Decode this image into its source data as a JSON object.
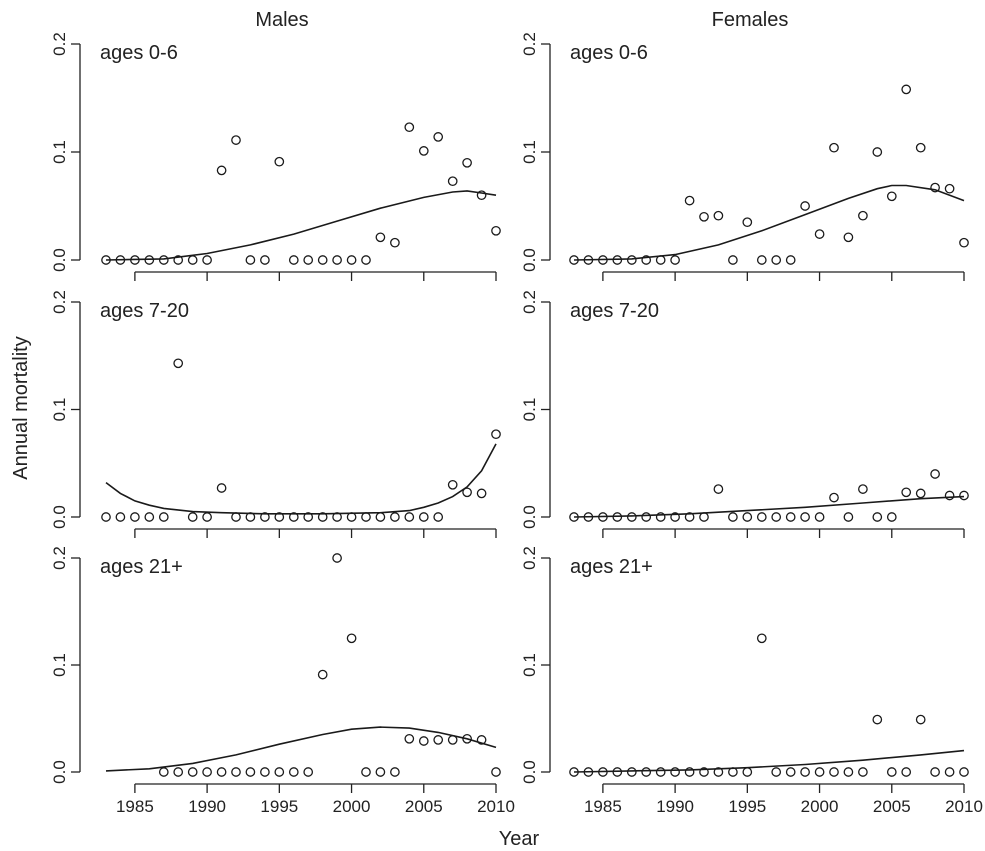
{
  "chart_data": {
    "type": "scatter",
    "xlabel": "Year",
    "ylabel": "Annual mortality",
    "ylim": [
      0,
      0.2
    ],
    "yticks": [
      0.0,
      0.1,
      0.2
    ],
    "ytick_labels": [
      "0.0",
      "0.1",
      "0.2"
    ],
    "xlim": [
      1983,
      2010
    ],
    "xticks": [
      1985,
      1990,
      1995,
      2000,
      2005,
      2010
    ],
    "xtick_labels": [
      "1985",
      "1990",
      "1995",
      "2000",
      "2005",
      "2010"
    ],
    "columns": [
      "Males",
      "Females"
    ],
    "grid": false,
    "panels": [
      {
        "column": "Males",
        "label": "ages 0-6",
        "points": [
          [
            1983,
            0
          ],
          [
            1984,
            0
          ],
          [
            1985,
            0
          ],
          [
            1986,
            0
          ],
          [
            1987,
            0
          ],
          [
            1988,
            0
          ],
          [
            1989,
            0
          ],
          [
            1990,
            0
          ],
          [
            1991,
            0.083
          ],
          [
            1992,
            0.111
          ],
          [
            1993,
            0
          ],
          [
            1994,
            0
          ],
          [
            1995,
            0.091
          ],
          [
            1996,
            0
          ],
          [
            1997,
            0
          ],
          [
            1998,
            0
          ],
          [
            1999,
            0
          ],
          [
            2000,
            0
          ],
          [
            2001,
            0
          ],
          [
            2002,
            0.021
          ],
          [
            2003,
            0.016
          ],
          [
            2004,
            0.123
          ],
          [
            2005,
            0.101
          ],
          [
            2006,
            0.114
          ],
          [
            2007,
            0.073
          ],
          [
            2008,
            0.09
          ],
          [
            2009,
            0.06
          ],
          [
            2010,
            0.027
          ]
        ],
        "fit": [
          [
            1983,
            0
          ],
          [
            1987,
            0.001
          ],
          [
            1990,
            0.006
          ],
          [
            1993,
            0.014
          ],
          [
            1996,
            0.024
          ],
          [
            1999,
            0.036
          ],
          [
            2002,
            0.048
          ],
          [
            2005,
            0.058
          ],
          [
            2007,
            0.063
          ],
          [
            2008,
            0.064
          ],
          [
            2009,
            0.062
          ],
          [
            2010,
            0.06
          ]
        ]
      },
      {
        "column": "Males",
        "label": "ages 7-20",
        "points": [
          [
            1983,
            0
          ],
          [
            1984,
            0
          ],
          [
            1985,
            0
          ],
          [
            1986,
            0
          ],
          [
            1987,
            0
          ],
          [
            1988,
            0.143
          ],
          [
            1989,
            0
          ],
          [
            1990,
            0
          ],
          [
            1991,
            0.027
          ],
          [
            1992,
            0
          ],
          [
            1993,
            0
          ],
          [
            1994,
            0
          ],
          [
            1995,
            0
          ],
          [
            1996,
            0
          ],
          [
            1997,
            0
          ],
          [
            1998,
            0
          ],
          [
            1999,
            0
          ],
          [
            2000,
            0
          ],
          [
            2001,
            0
          ],
          [
            2002,
            0
          ],
          [
            2003,
            0
          ],
          [
            2004,
            0
          ],
          [
            2005,
            0
          ],
          [
            2006,
            0
          ],
          [
            2007,
            0.03
          ],
          [
            2008,
            0.023
          ],
          [
            2009,
            0.022
          ],
          [
            2010,
            0.077
          ]
        ],
        "fit": [
          [
            1983,
            0.032
          ],
          [
            1984,
            0.022
          ],
          [
            1985,
            0.015
          ],
          [
            1986,
            0.011
          ],
          [
            1987,
            0.008
          ],
          [
            1989,
            0.005
          ],
          [
            1991,
            0.004
          ],
          [
            1994,
            0.003
          ],
          [
            1998,
            0.003
          ],
          [
            2002,
            0.004
          ],
          [
            2004,
            0.006
          ],
          [
            2005,
            0.009
          ],
          [
            2006,
            0.013
          ],
          [
            2007,
            0.019
          ],
          [
            2008,
            0.028
          ],
          [
            2009,
            0.043
          ],
          [
            2010,
            0.068
          ]
        ]
      },
      {
        "column": "Males",
        "label": "ages 21+",
        "points": [
          [
            1987,
            0
          ],
          [
            1988,
            0
          ],
          [
            1989,
            0
          ],
          [
            1990,
            0
          ],
          [
            1991,
            0
          ],
          [
            1992,
            0
          ],
          [
            1993,
            0
          ],
          [
            1994,
            0
          ],
          [
            1995,
            0
          ],
          [
            1996,
            0
          ],
          [
            1997,
            0
          ],
          [
            1998,
            0.091
          ],
          [
            1999,
            0.2
          ],
          [
            2000,
            0.125
          ],
          [
            2001,
            0
          ],
          [
            2002,
            0
          ],
          [
            2003,
            0
          ],
          [
            2004,
            0.031
          ],
          [
            2005,
            0.029
          ],
          [
            2006,
            0.03
          ],
          [
            2007,
            0.03
          ],
          [
            2008,
            0.031
          ],
          [
            2009,
            0.03
          ],
          [
            2010,
            0
          ]
        ],
        "fit": [
          [
            1983,
            0.001
          ],
          [
            1986,
            0.003
          ],
          [
            1989,
            0.008
          ],
          [
            1992,
            0.016
          ],
          [
            1995,
            0.026
          ],
          [
            1998,
            0.035
          ],
          [
            2000,
            0.04
          ],
          [
            2002,
            0.042
          ],
          [
            2004,
            0.041
          ],
          [
            2006,
            0.037
          ],
          [
            2008,
            0.031
          ],
          [
            2010,
            0.023
          ]
        ]
      },
      {
        "column": "Females",
        "label": "ages 0-6",
        "points": [
          [
            1983,
            0
          ],
          [
            1984,
            0
          ],
          [
            1985,
            0
          ],
          [
            1986,
            0
          ],
          [
            1987,
            0
          ],
          [
            1988,
            0
          ],
          [
            1989,
            0
          ],
          [
            1990,
            0
          ],
          [
            1991,
            0.055
          ],
          [
            1992,
            0.04
          ],
          [
            1993,
            0.041
          ],
          [
            1994,
            0
          ],
          [
            1995,
            0.035
          ],
          [
            1996,
            0
          ],
          [
            1997,
            0
          ],
          [
            1998,
            0
          ],
          [
            1999,
            0.05
          ],
          [
            2000,
            0.024
          ],
          [
            2001,
            0.104
          ],
          [
            2002,
            0.021
          ],
          [
            2003,
            0.041
          ],
          [
            2004,
            0.1
          ],
          [
            2005,
            0.059
          ],
          [
            2006,
            0.158
          ],
          [
            2007,
            0.104
          ],
          [
            2008,
            0.067
          ],
          [
            2009,
            0.066
          ],
          [
            2010,
            0.016
          ]
        ],
        "fit": [
          [
            1983,
            0
          ],
          [
            1987,
            0.001
          ],
          [
            1990,
            0.005
          ],
          [
            1993,
            0.014
          ],
          [
            1996,
            0.027
          ],
          [
            1999,
            0.042
          ],
          [
            2002,
            0.057
          ],
          [
            2004,
            0.066
          ],
          [
            2005,
            0.069
          ],
          [
            2006,
            0.069
          ],
          [
            2008,
            0.065
          ],
          [
            2010,
            0.055
          ]
        ]
      },
      {
        "column": "Females",
        "label": "ages 7-20",
        "points": [
          [
            1983,
            0
          ],
          [
            1984,
            0
          ],
          [
            1985,
            0
          ],
          [
            1986,
            0
          ],
          [
            1987,
            0
          ],
          [
            1988,
            0
          ],
          [
            1989,
            0
          ],
          [
            1990,
            0
          ],
          [
            1991,
            0
          ],
          [
            1992,
            0
          ],
          [
            1993,
            0.026
          ],
          [
            1994,
            0
          ],
          [
            1995,
            0
          ],
          [
            1996,
            0
          ],
          [
            1997,
            0
          ],
          [
            1998,
            0
          ],
          [
            1999,
            0
          ],
          [
            2000,
            0
          ],
          [
            2001,
            0.018
          ],
          [
            2002,
            0
          ],
          [
            2003,
            0.026
          ],
          [
            2004,
            0
          ],
          [
            2005,
            0
          ],
          [
            2006,
            0.023
          ],
          [
            2007,
            0.022
          ],
          [
            2008,
            0.04
          ],
          [
            2009,
            0.02
          ],
          [
            2010,
            0.02
          ]
        ],
        "fit": [
          [
            1983,
            0
          ],
          [
            1987,
            0.001
          ],
          [
            1991,
            0.003
          ],
          [
            1995,
            0.006
          ],
          [
            1999,
            0.009
          ],
          [
            2003,
            0.013
          ],
          [
            2007,
            0.017
          ],
          [
            2010,
            0.019
          ]
        ]
      },
      {
        "column": "Females",
        "label": "ages 21+",
        "points": [
          [
            1983,
            0
          ],
          [
            1984,
            0
          ],
          [
            1985,
            0
          ],
          [
            1986,
            0
          ],
          [
            1987,
            0
          ],
          [
            1988,
            0
          ],
          [
            1989,
            0
          ],
          [
            1990,
            0
          ],
          [
            1991,
            0
          ],
          [
            1992,
            0
          ],
          [
            1993,
            0
          ],
          [
            1994,
            0
          ],
          [
            1995,
            0
          ],
          [
            1996,
            0.125
          ],
          [
            1997,
            0
          ],
          [
            1998,
            0
          ],
          [
            1999,
            0
          ],
          [
            2000,
            0
          ],
          [
            2001,
            0
          ],
          [
            2002,
            0
          ],
          [
            2003,
            0
          ],
          [
            2004,
            0.049
          ],
          [
            2005,
            0
          ],
          [
            2006,
            0
          ],
          [
            2007,
            0.049
          ],
          [
            2008,
            0
          ],
          [
            2009,
            0
          ],
          [
            2010,
            0
          ]
        ],
        "fit": [
          [
            1983,
            0
          ],
          [
            1987,
            0.001
          ],
          [
            1991,
            0.002
          ],
          [
            1995,
            0.004
          ],
          [
            1999,
            0.007
          ],
          [
            2003,
            0.011
          ],
          [
            2007,
            0.016
          ],
          [
            2010,
            0.02
          ]
        ]
      }
    ]
  }
}
